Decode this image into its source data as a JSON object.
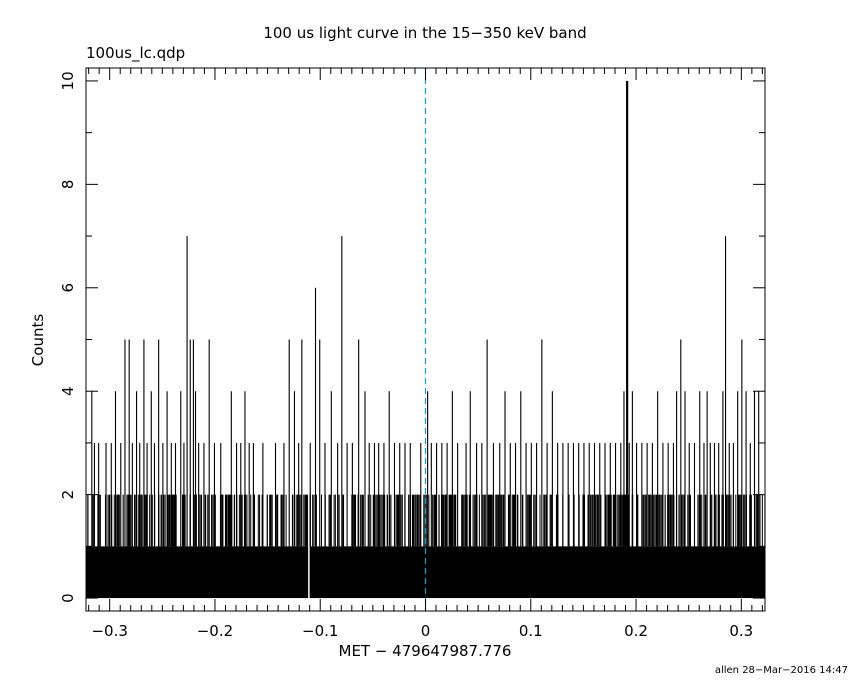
{
  "chart_data": {
    "type": "bar",
    "title": "100 us light curve in the 15−350 keV band",
    "file_label": "100us_lc.qdp",
    "xlabel": "MET − 479647987.776",
    "ylabel": "Counts",
    "footer": "allen 28−Mar−2016 14:47",
    "xlim": [
      -0.3225,
      0.3225
    ],
    "ylim": [
      -0.25,
      10.25
    ],
    "bin_width": 0.0001,
    "x_start": -0.3225,
    "x_end": 0.3225,
    "x_major_ticks": [
      -0.3,
      -0.2,
      -0.1,
      0,
      0.1,
      0.2,
      0.3
    ],
    "x_tick_labels": [
      "−0.3",
      "−0.2",
      "−0.1",
      "0",
      "0.1",
      "0.2",
      "0.3"
    ],
    "y_major_ticks": [
      0,
      2,
      4,
      6,
      8,
      10
    ],
    "y_tick_labels": [
      "0",
      "2",
      "4",
      "6",
      "8",
      "10"
    ],
    "trigger_line_x": 0,
    "baseline_max_count": 1,
    "peaks": [
      {
        "x": -0.3175,
        "y": 4
      },
      {
        "x": -0.315,
        "y": 3
      },
      {
        "x": -0.311,
        "y": 3
      },
      {
        "x": -0.304,
        "y": 3
      },
      {
        "x": -0.299,
        "y": 3
      },
      {
        "x": -0.295,
        "y": 4
      },
      {
        "x": -0.29,
        "y": 3
      },
      {
        "x": -0.286,
        "y": 5
      },
      {
        "x": -0.282,
        "y": 5
      },
      {
        "x": -0.279,
        "y": 3
      },
      {
        "x": -0.275,
        "y": 4
      },
      {
        "x": -0.272,
        "y": 3
      },
      {
        "x": -0.268,
        "y": 5
      },
      {
        "x": -0.265,
        "y": 3
      },
      {
        "x": -0.261,
        "y": 4
      },
      {
        "x": -0.258,
        "y": 3
      },
      {
        "x": -0.254,
        "y": 5
      },
      {
        "x": -0.25,
        "y": 3
      },
      {
        "x": -0.246,
        "y": 4
      },
      {
        "x": -0.242,
        "y": 3
      },
      {
        "x": -0.238,
        "y": 3
      },
      {
        "x": -0.233,
        "y": 4
      },
      {
        "x": -0.23,
        "y": 3
      },
      {
        "x": -0.227,
        "y": 7
      },
      {
        "x": -0.224,
        "y": 5
      },
      {
        "x": -0.221,
        "y": 5
      },
      {
        "x": -0.219,
        "y": 4
      },
      {
        "x": -0.216,
        "y": 3
      },
      {
        "x": -0.211,
        "y": 3
      },
      {
        "x": -0.206,
        "y": 5
      },
      {
        "x": -0.201,
        "y": 3
      },
      {
        "x": -0.195,
        "y": 3
      },
      {
        "x": -0.185,
        "y": 4
      },
      {
        "x": -0.18,
        "y": 3
      },
      {
        "x": -0.176,
        "y": 3
      },
      {
        "x": -0.172,
        "y": 4
      },
      {
        "x": -0.168,
        "y": 3
      },
      {
        "x": -0.164,
        "y": 3
      },
      {
        "x": -0.155,
        "y": 3
      },
      {
        "x": -0.143,
        "y": 3
      },
      {
        "x": -0.135,
        "y": 3
      },
      {
        "x": -0.13,
        "y": 5
      },
      {
        "x": -0.125,
        "y": 4
      },
      {
        "x": -0.121,
        "y": 3
      },
      {
        "x": -0.118,
        "y": 5
      },
      {
        "x": -0.11,
        "y": 3
      },
      {
        "x": -0.105,
        "y": 6
      },
      {
        "x": -0.101,
        "y": 5
      },
      {
        "x": -0.096,
        "y": 3
      },
      {
        "x": -0.09,
        "y": 4
      },
      {
        "x": -0.084,
        "y": 3
      },
      {
        "x": -0.08,
        "y": 7
      },
      {
        "x": -0.075,
        "y": 3
      },
      {
        "x": -0.07,
        "y": 3
      },
      {
        "x": -0.064,
        "y": 5
      },
      {
        "x": -0.058,
        "y": 4
      },
      {
        "x": -0.054,
        "y": 3
      },
      {
        "x": -0.049,
        "y": 3
      },
      {
        "x": -0.045,
        "y": 3
      },
      {
        "x": -0.04,
        "y": 3
      },
      {
        "x": -0.035,
        "y": 4
      },
      {
        "x": -0.03,
        "y": 3
      },
      {
        "x": -0.025,
        "y": 3
      },
      {
        "x": -0.02,
        "y": 3
      },
      {
        "x": -0.015,
        "y": 3
      },
      {
        "x": -0.005,
        "y": 3
      },
      {
        "x": 0.0015,
        "y": 4
      },
      {
        "x": 0.005,
        "y": 3
      },
      {
        "x": 0.01,
        "y": 3
      },
      {
        "x": 0.015,
        "y": 3
      },
      {
        "x": 0.02,
        "y": 3
      },
      {
        "x": 0.025,
        "y": 4
      },
      {
        "x": 0.03,
        "y": 3
      },
      {
        "x": 0.038,
        "y": 3
      },
      {
        "x": 0.042,
        "y": 4
      },
      {
        "x": 0.048,
        "y": 3
      },
      {
        "x": 0.053,
        "y": 3
      },
      {
        "x": 0.058,
        "y": 5
      },
      {
        "x": 0.064,
        "y": 3
      },
      {
        "x": 0.07,
        "y": 3
      },
      {
        "x": 0.075,
        "y": 4
      },
      {
        "x": 0.08,
        "y": 3
      },
      {
        "x": 0.085,
        "y": 3
      },
      {
        "x": 0.09,
        "y": 4
      },
      {
        "x": 0.095,
        "y": 3
      },
      {
        "x": 0.1,
        "y": 3
      },
      {
        "x": 0.105,
        "y": 3
      },
      {
        "x": 0.11,
        "y": 5
      },
      {
        "x": 0.115,
        "y": 3
      },
      {
        "x": 0.12,
        "y": 4
      },
      {
        "x": 0.125,
        "y": 3
      },
      {
        "x": 0.13,
        "y": 3
      },
      {
        "x": 0.135,
        "y": 3
      },
      {
        "x": 0.14,
        "y": 3
      },
      {
        "x": 0.145,
        "y": 3
      },
      {
        "x": 0.15,
        "y": 3
      },
      {
        "x": 0.155,
        "y": 3
      },
      {
        "x": 0.16,
        "y": 3
      },
      {
        "x": 0.165,
        "y": 3
      },
      {
        "x": 0.17,
        "y": 3
      },
      {
        "x": 0.175,
        "y": 3
      },
      {
        "x": 0.18,
        "y": 3
      },
      {
        "x": 0.185,
        "y": 3
      },
      {
        "x": 0.188,
        "y": 4
      },
      {
        "x": 0.1905,
        "y": 10
      },
      {
        "x": 0.193,
        "y": 3
      },
      {
        "x": 0.196,
        "y": 4
      },
      {
        "x": 0.2,
        "y": 3
      },
      {
        "x": 0.205,
        "y": 3
      },
      {
        "x": 0.21,
        "y": 3
      },
      {
        "x": 0.215,
        "y": 3
      },
      {
        "x": 0.22,
        "y": 4
      },
      {
        "x": 0.225,
        "y": 3
      },
      {
        "x": 0.23,
        "y": 3
      },
      {
        "x": 0.235,
        "y": 3
      },
      {
        "x": 0.238,
        "y": 4
      },
      {
        "x": 0.242,
        "y": 5
      },
      {
        "x": 0.246,
        "y": 4
      },
      {
        "x": 0.25,
        "y": 3
      },
      {
        "x": 0.255,
        "y": 3
      },
      {
        "x": 0.26,
        "y": 4
      },
      {
        "x": 0.264,
        "y": 3
      },
      {
        "x": 0.267,
        "y": 4
      },
      {
        "x": 0.27,
        "y": 3
      },
      {
        "x": 0.274,
        "y": 3
      },
      {
        "x": 0.278,
        "y": 3
      },
      {
        "x": 0.282,
        "y": 4
      },
      {
        "x": 0.2845,
        "y": 7
      },
      {
        "x": 0.288,
        "y": 3
      },
      {
        "x": 0.292,
        "y": 3
      },
      {
        "x": 0.296,
        "y": 4
      },
      {
        "x": 0.3,
        "y": 5
      },
      {
        "x": 0.304,
        "y": 4
      },
      {
        "x": 0.308,
        "y": 3
      },
      {
        "x": 0.312,
        "y": 4
      },
      {
        "x": 0.316,
        "y": 4
      }
    ],
    "twos_density": 0.62,
    "zero_bins": [
      -0.1115
    ],
    "colors": {
      "foreground": "#000000",
      "background": "#ffffff",
      "trigger_line": "#0aa0c8"
    },
    "grid": false,
    "legend": "none"
  }
}
